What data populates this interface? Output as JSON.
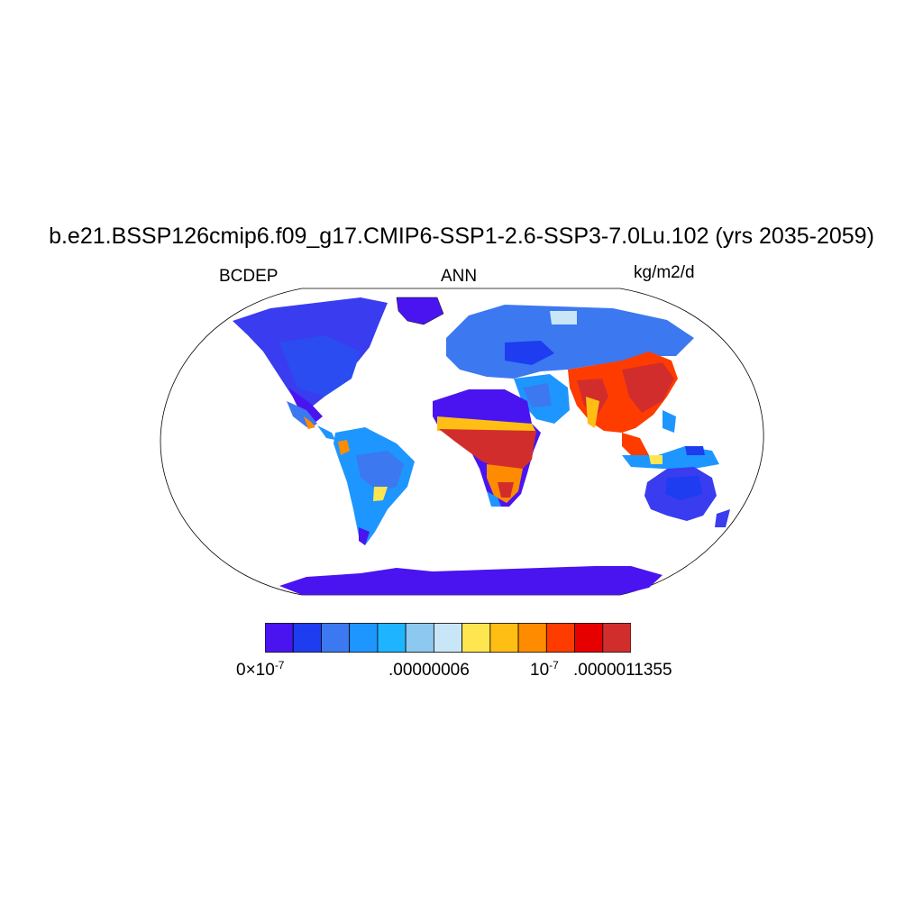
{
  "title": "b.e21.BSSP126cmip6.f09_g17.CMIP6-SSP1-2.6-SSP3-7.0Lu.102 (yrs 2035-2059)",
  "left_label": "BCDEP",
  "center_label": "ANN",
  "units": "kg/m2/d",
  "colorbar": {
    "colors": [
      "#4a14f0",
      "#1e3cf0",
      "#3c78f0",
      "#1e96ff",
      "#1eb4ff",
      "#8cc8f0",
      "#c8e6f8",
      "#ffe650",
      "#ffbe14",
      "#ff8c00",
      "#ff3c00",
      "#e60000",
      "#d22d2d"
    ],
    "labels": {
      "first_mantissa": "0",
      "times": "×10",
      "first_exp": "-7",
      "mid": ".00000006",
      "ten": "10",
      "ten_exp": "-7",
      "max": ".0000011355"
    }
  }
}
